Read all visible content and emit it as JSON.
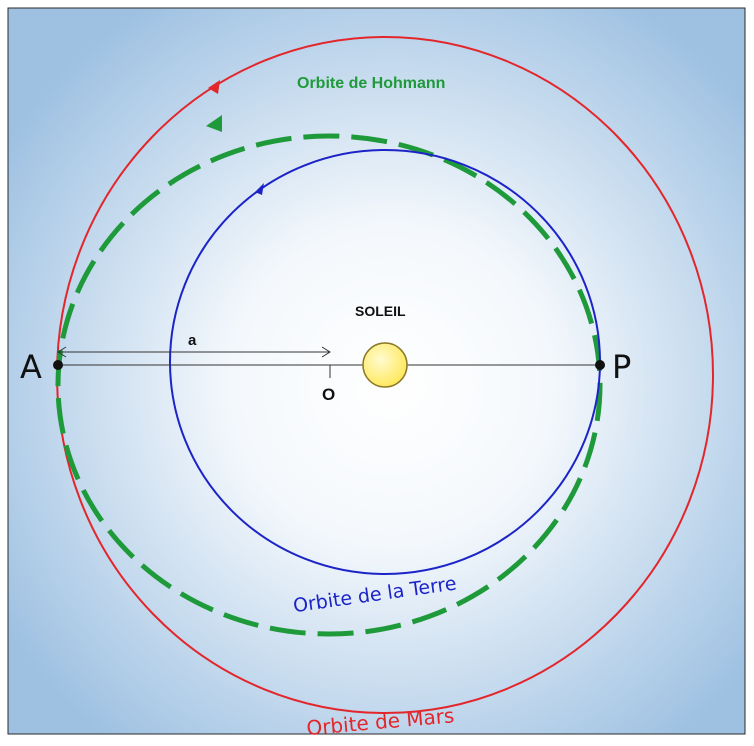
{
  "labels": {
    "hohmann_orbit": "Orbite de Hohmann",
    "earth_orbit": "Orbite de la Terre",
    "mars_orbit": "Orbite de Mars",
    "sun": "SOLEIL",
    "aphelion": "A",
    "perihelion": "P",
    "semi_major_axis": "a",
    "center": "O"
  },
  "colors": {
    "background_center": "#ffffff",
    "background_edge": "#9ec1e2",
    "mars_orbit": "#e3262b",
    "hohmann_orbit": "#1f9a3a",
    "earth_orbit": "#1c24c8",
    "sun_fill": "#ffe85a",
    "sun_stroke": "#8a7a2a",
    "axis_line": "#333333",
    "label_dark": "#111111"
  }
}
